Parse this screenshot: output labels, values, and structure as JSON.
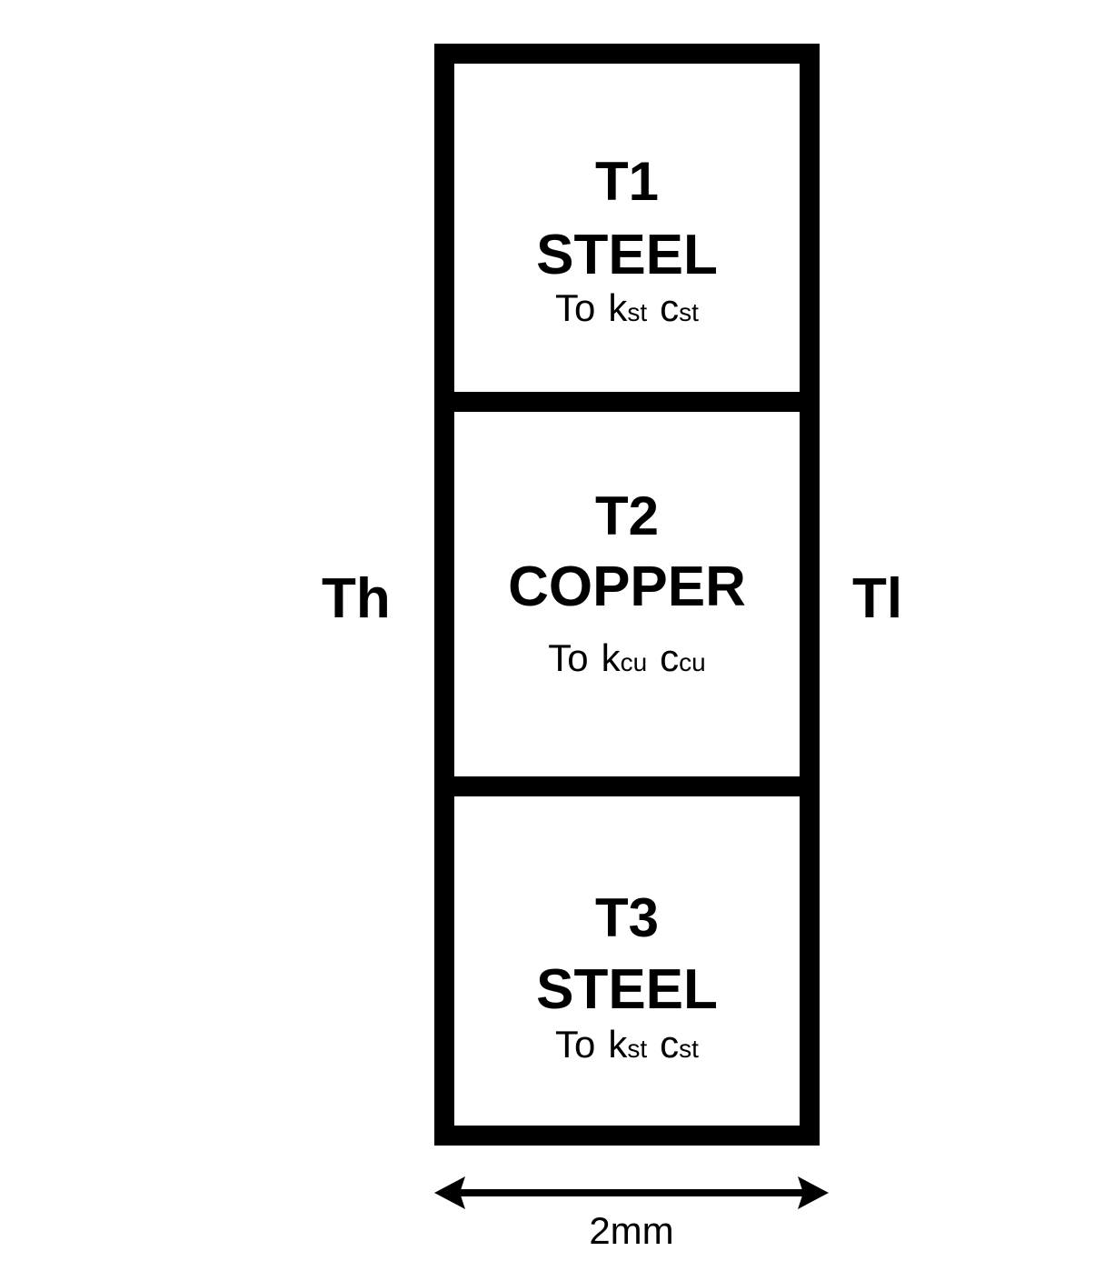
{
  "left_boundary": "Th",
  "right_boundary": "Tl",
  "layers": [
    {
      "temp": "T1",
      "material": "STEEL",
      "to": "To",
      "k": "k",
      "k_sub": "st",
      "c": "c",
      "c_sub": "st"
    },
    {
      "temp": "T2",
      "material": "COPPER",
      "to": "To",
      "k": "k",
      "k_sub": "cu",
      "c": "c",
      "c_sub": "cu"
    },
    {
      "temp": "T3",
      "material": "STEEL",
      "to": "To",
      "k": "k",
      "k_sub": "st",
      "c": "c",
      "c_sub": "st"
    }
  ],
  "dimension": {
    "label": "2mm",
    "icon": "double-arrow-icon"
  }
}
